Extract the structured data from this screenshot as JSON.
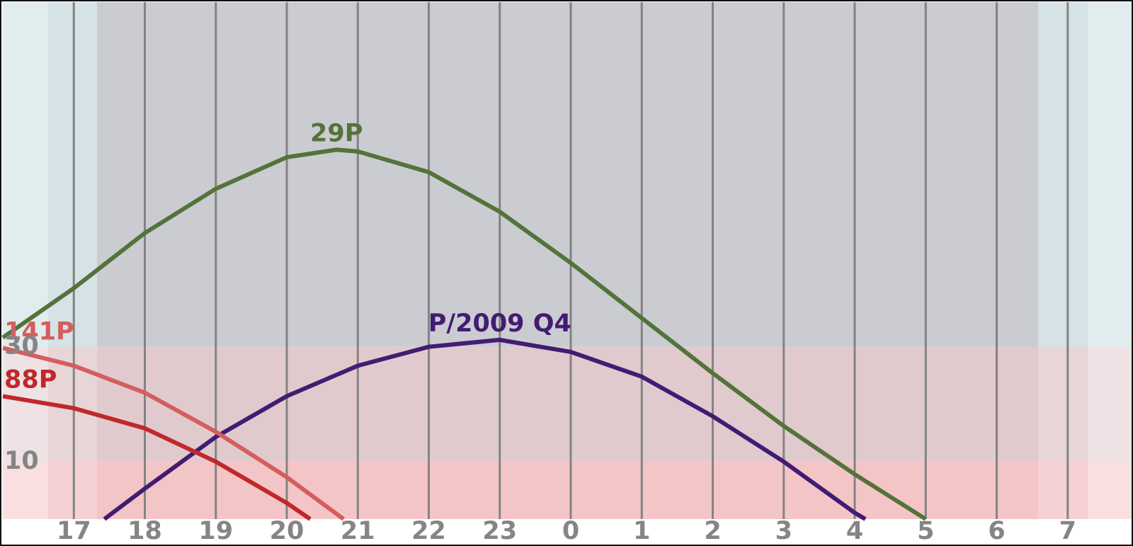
{
  "chart_data": {
    "type": "line",
    "xlim": [
      16,
      31.9
    ],
    "xticks": [
      17,
      18,
      19,
      20,
      21,
      22,
      23,
      {
        "value": 24,
        "label": "0"
      },
      {
        "value": 25,
        "label": "1"
      },
      {
        "value": 26,
        "label": "2"
      },
      {
        "value": 27,
        "label": "3"
      },
      {
        "value": 28,
        "label": "4"
      },
      {
        "value": 29,
        "label": "5"
      },
      {
        "value": 30,
        "label": "6"
      },
      {
        "value": 31,
        "label": "7"
      }
    ],
    "ylim": [
      0,
      90
    ],
    "yticks": [
      10,
      30
    ],
    "grid": true,
    "series": [
      {
        "name": "29P",
        "color": "#54733a",
        "x": [
          16,
          17,
          18,
          19,
          20,
          20.7,
          21,
          22,
          23,
          24,
          25,
          26,
          27,
          28,
          29
        ],
        "values": [
          31.6,
          40.2,
          49.8,
          57.5,
          63,
          64.3,
          64,
          60.4,
          53.5,
          44.6,
          35,
          25.4,
          16.2,
          7.8,
          0
        ]
      },
      {
        "name": "P/2009 Q4",
        "color": "#421c72",
        "x": [
          17.43,
          18,
          19,
          20,
          21,
          22,
          23,
          24,
          25,
          26,
          27,
          28,
          28.15
        ],
        "values": [
          0,
          5.3,
          14.3,
          21.4,
          26.7,
          30,
          31.2,
          29.1,
          24.8,
          17.9,
          10,
          1.1,
          0
        ]
      },
      {
        "name": "141P",
        "color": "#d45e5e",
        "x": [
          16,
          17,
          18,
          19,
          20,
          20.8
        ],
        "values": [
          29.8,
          26.7,
          22,
          15.2,
          7.3,
          0
        ]
      },
      {
        "name": "88P",
        "color": "#c0282b",
        "x": [
          16,
          17,
          18,
          19,
          20,
          20.33
        ],
        "values": [
          21.4,
          19.3,
          15.8,
          10,
          2.8,
          0
        ]
      }
    ]
  }
}
